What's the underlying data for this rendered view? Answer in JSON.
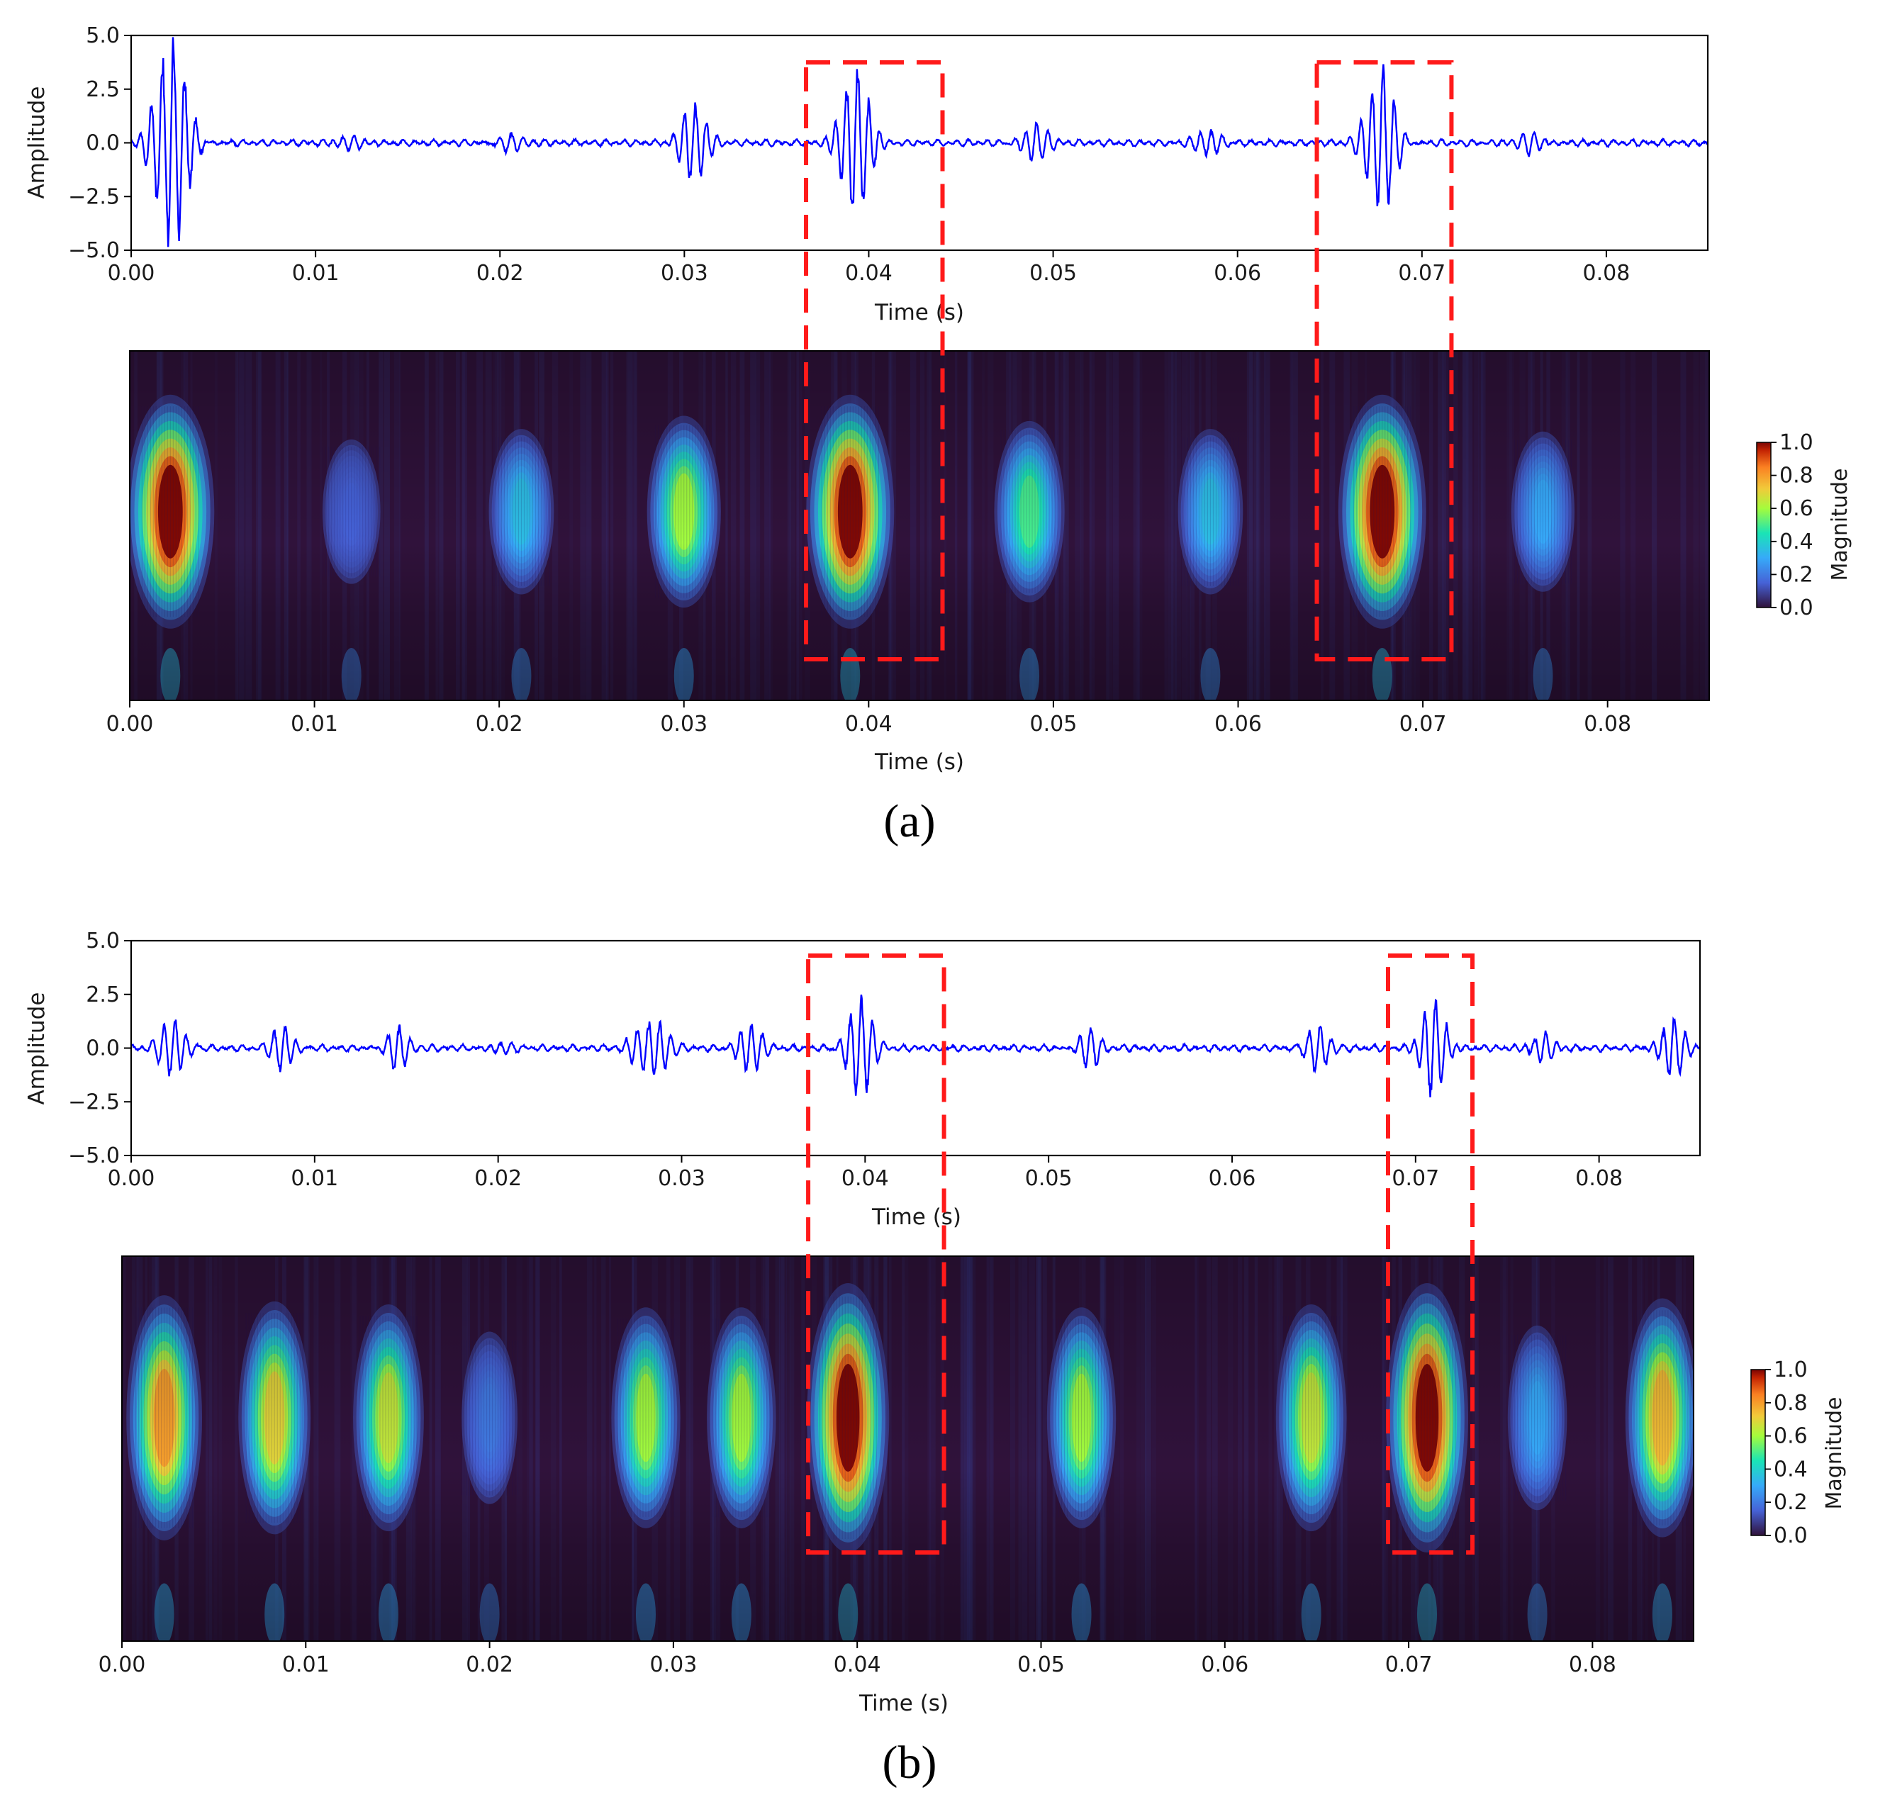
{
  "chart_data": [
    {
      "panel_caption": "(a)",
      "type": "line",
      "title": "",
      "xlabel": "Time (s)",
      "ylabel": "Amplitude",
      "xlim": [
        0.0,
        0.0855
      ],
      "ylim": [
        -5.0,
        5.0
      ],
      "xticks": [
        "0.00",
        "0.01",
        "0.02",
        "0.03",
        "0.04",
        "0.05",
        "0.06",
        "0.07",
        "0.08"
      ],
      "yticks": [
        "5.0",
        "2.5",
        "0.0",
        "−2.5",
        "−5.0"
      ],
      "series": [
        {
          "name": "signal",
          "color": "#0000ff"
        }
      ],
      "bursts": [
        {
          "t": 0.0022,
          "amp": 4.8,
          "width": 0.0011
        },
        {
          "t": 0.012,
          "amp": 0.25,
          "width": 0.001
        },
        {
          "t": 0.0205,
          "amp": 0.45,
          "width": 0.001
        },
        {
          "t": 0.0305,
          "amp": 1.8,
          "width": 0.0009
        },
        {
          "t": 0.0393,
          "amp": 3.3,
          "width": 0.001
        },
        {
          "t": 0.049,
          "amp": 0.9,
          "width": 0.0009
        },
        {
          "t": 0.0585,
          "amp": 0.6,
          "width": 0.0009
        },
        {
          "t": 0.0678,
          "amp": 3.4,
          "width": 0.001
        },
        {
          "t": 0.076,
          "amp": 0.5,
          "width": 0.0009
        }
      ],
      "highlight_boxes": [
        {
          "x0": 0.0366,
          "x1": 0.044
        },
        {
          "x0": 0.0643,
          "x1": 0.0716
        }
      ]
    },
    {
      "panel_caption": "(a)",
      "type": "heatmap",
      "xlabel": "Time (s)",
      "xlim": [
        0.0,
        0.0855
      ],
      "xticks": [
        "0.00",
        "0.01",
        "0.02",
        "0.03",
        "0.04",
        "0.05",
        "0.06",
        "0.07",
        "0.08"
      ],
      "colorbar": {
        "label": "Magnitude",
        "ticks": [
          "1.0",
          "0.8",
          "0.6",
          "0.4",
          "0.2",
          "0.0"
        ],
        "range": [
          0.0,
          1.0
        ],
        "colormap": "jet"
      },
      "peaks": [
        {
          "t": 0.0022,
          "mag": 1.0
        },
        {
          "t": 0.012,
          "mag": 0.15
        },
        {
          "t": 0.0212,
          "mag": 0.35
        },
        {
          "t": 0.03,
          "mag": 0.6
        },
        {
          "t": 0.039,
          "mag": 1.0
        },
        {
          "t": 0.0487,
          "mag": 0.5
        },
        {
          "t": 0.0585,
          "mag": 0.35
        },
        {
          "t": 0.0678,
          "mag": 1.0
        },
        {
          "t": 0.0765,
          "mag": 0.3
        }
      ]
    },
    {
      "panel_caption": "(b)",
      "type": "line",
      "title": "",
      "xlabel": "Time (s)",
      "ylabel": "Amplitude",
      "xlim": [
        0.0,
        0.0855
      ],
      "ylim": [
        -5.0,
        5.0
      ],
      "xticks": [
        "0.00",
        "0.01",
        "0.02",
        "0.03",
        "0.04",
        "0.05",
        "0.06",
        "0.07",
        "0.08"
      ],
      "yticks": [
        "5.0",
        "2.5",
        "0.0",
        "−2.5",
        "−5.0"
      ],
      "series": [
        {
          "name": "signal",
          "color": "#0000ff"
        }
      ],
      "bursts": [
        {
          "t": 0.0023,
          "amp": 1.4,
          "width": 0.0009
        },
        {
          "t": 0.0083,
          "amp": 1.1,
          "width": 0.0008
        },
        {
          "t": 0.0145,
          "amp": 1.1,
          "width": 0.0008
        },
        {
          "t": 0.02,
          "amp": 0.3,
          "width": 0.0008
        },
        {
          "t": 0.0275,
          "amp": 0.8,
          "width": 0.0008
        },
        {
          "t": 0.0287,
          "amp": 1.3,
          "width": 0.0008
        },
        {
          "t": 0.0337,
          "amp": 1.2,
          "width": 0.0008
        },
        {
          "t": 0.0397,
          "amp": 2.5,
          "width": 0.0008
        },
        {
          "t": 0.0522,
          "amp": 1.0,
          "width": 0.0008
        },
        {
          "t": 0.0647,
          "amp": 1.2,
          "width": 0.0008
        },
        {
          "t": 0.071,
          "amp": 2.3,
          "width": 0.0008
        },
        {
          "t": 0.077,
          "amp": 0.6,
          "width": 0.0008
        },
        {
          "t": 0.084,
          "amp": 1.4,
          "width": 0.0008
        }
      ],
      "highlight_boxes": [
        {
          "x0": 0.0369,
          "x1": 0.0443
        },
        {
          "x0": 0.0685,
          "x1": 0.0731
        }
      ]
    },
    {
      "panel_caption": "(b)",
      "type": "heatmap",
      "xlabel": "Time (s)",
      "xlim": [
        0.0,
        0.0855
      ],
      "xticks": [
        "0.00",
        "0.01",
        "0.02",
        "0.03",
        "0.04",
        "0.05",
        "0.06",
        "0.07",
        "0.08"
      ],
      "colorbar": {
        "label": "Magnitude",
        "ticks": [
          "1.0",
          "0.8",
          "0.6",
          "0.4",
          "0.2",
          "0.0"
        ],
        "range": [
          0.0,
          1.0
        ],
        "colormap": "jet"
      },
      "peaks": [
        {
          "t": 0.0023,
          "mag": 0.8
        },
        {
          "t": 0.0083,
          "mag": 0.7
        },
        {
          "t": 0.0145,
          "mag": 0.65
        },
        {
          "t": 0.02,
          "mag": 0.2
        },
        {
          "t": 0.0285,
          "mag": 0.6
        },
        {
          "t": 0.0337,
          "mag": 0.6
        },
        {
          "t": 0.0395,
          "mag": 1.0
        },
        {
          "t": 0.0522,
          "mag": 0.6
        },
        {
          "t": 0.0647,
          "mag": 0.65
        },
        {
          "t": 0.071,
          "mag": 1.0
        },
        {
          "t": 0.077,
          "mag": 0.3
        },
        {
          "t": 0.0838,
          "mag": 0.75
        }
      ]
    }
  ],
  "captions": {
    "a": "(a)",
    "b": "(b)"
  }
}
